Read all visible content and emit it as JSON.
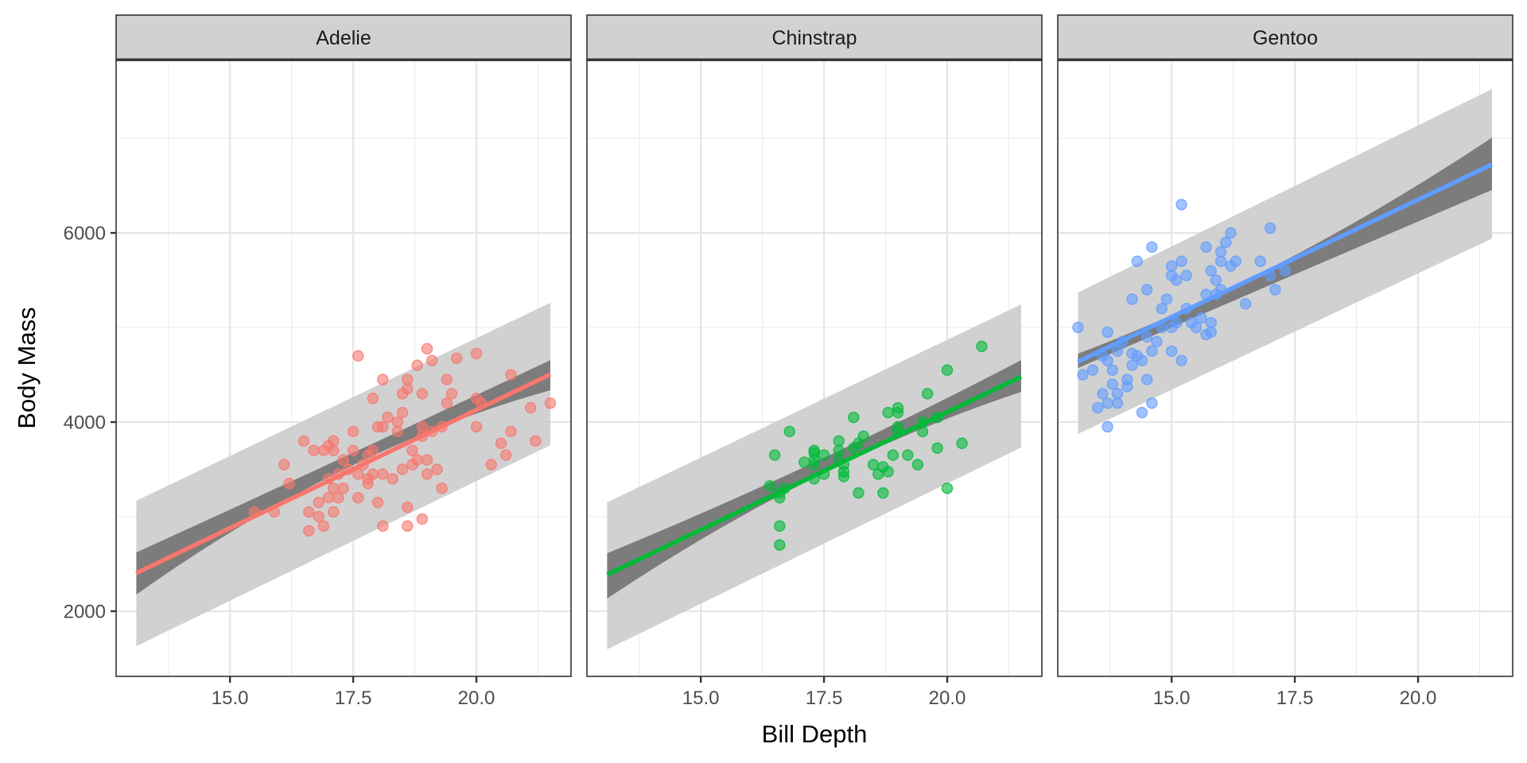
{
  "chart_data": {
    "type": "scatter",
    "subtype": "faceted scatter with linear fit, confidence band and prediction band",
    "xlabel": "Bill Depth",
    "ylabel": "Body Mass",
    "xlim": [
      12.69,
      21.92
    ],
    "ylim": [
      1311,
      7824
    ],
    "x_ticks": [
      15.0,
      17.5,
      20.0
    ],
    "x_tick_labels": [
      "15.0",
      "17.5",
      "20.0"
    ],
    "x_minor_gridlines": [
      13.75,
      16.25,
      18.75,
      21.25
    ],
    "y_ticks": [
      2000,
      4000,
      6000
    ],
    "y_tick_labels": [
      "2000",
      "4000",
      "6000"
    ],
    "y_minor_gridlines": [
      3000,
      5000,
      7000
    ],
    "grid": true,
    "legend": "none",
    "band_colors": {
      "prediction": "#cccccc",
      "confidence": "#777777"
    },
    "strip_fill": "#d1d1d1",
    "panels": [
      {
        "name": "Adelie",
        "color": "#F8766D",
        "fit": {
          "x": [
            13.1,
            21.5
          ],
          "y": [
            2403,
            4504
          ]
        },
        "confidence": {
          "x": [
            13.1,
            17.6,
            21.5
          ],
          "upper": [
            2622,
            3700,
            4655
          ],
          "lower": [
            2176,
            3570,
            4336
          ]
        },
        "prediction": {
          "x": [
            13.1,
            21.5
          ],
          "upper": [
            3168,
            5261
          ],
          "lower": [
            1630,
            3756
          ]
        },
        "points": [
          [
            15.5,
            3050
          ],
          [
            15.9,
            3050
          ],
          [
            16.1,
            3550
          ],
          [
            16.2,
            3350
          ],
          [
            16.5,
            3800
          ],
          [
            16.6,
            2850
          ],
          [
            16.6,
            3050
          ],
          [
            16.7,
            3700
          ],
          [
            16.8,
            3000
          ],
          [
            16.8,
            3150
          ],
          [
            16.9,
            3700
          ],
          [
            16.9,
            2900
          ],
          [
            17.0,
            3400
          ],
          [
            17.0,
            3750
          ],
          [
            17.0,
            3200
          ],
          [
            17.1,
            3700
          ],
          [
            17.1,
            3300
          ],
          [
            17.1,
            3050
          ],
          [
            17.1,
            3800
          ],
          [
            17.2,
            3200
          ],
          [
            17.2,
            3450
          ],
          [
            17.3,
            3600
          ],
          [
            17.3,
            3300
          ],
          [
            17.4,
            3500
          ],
          [
            17.5,
            3700
          ],
          [
            17.5,
            3900
          ],
          [
            17.6,
            4700
          ],
          [
            17.6,
            3450
          ],
          [
            17.6,
            3200
          ],
          [
            17.7,
            3550
          ],
          [
            17.8,
            3650
          ],
          [
            17.8,
            3350
          ],
          [
            17.8,
            3400
          ],
          [
            17.9,
            4250
          ],
          [
            17.9,
            3450
          ],
          [
            17.9,
            3700
          ],
          [
            18.0,
            3150
          ],
          [
            18.0,
            3950
          ],
          [
            18.1,
            4450
          ],
          [
            18.1,
            2900
          ],
          [
            18.1,
            3950
          ],
          [
            18.1,
            3450
          ],
          [
            18.2,
            4050
          ],
          [
            18.3,
            3400
          ],
          [
            18.4,
            4000
          ],
          [
            18.4,
            3900
          ],
          [
            18.5,
            4300
          ],
          [
            18.5,
            4100
          ],
          [
            18.5,
            3500
          ],
          [
            18.6,
            4450
          ],
          [
            18.6,
            4350
          ],
          [
            18.6,
            3100
          ],
          [
            18.6,
            2900
          ],
          [
            18.7,
            3550
          ],
          [
            18.7,
            3700
          ],
          [
            18.8,
            3600
          ],
          [
            18.8,
            4600
          ],
          [
            18.9,
            4300
          ],
          [
            18.9,
            3950
          ],
          [
            18.9,
            3850
          ],
          [
            18.9,
            2975
          ],
          [
            19.0,
            4775
          ],
          [
            19.0,
            3600
          ],
          [
            19.0,
            3450
          ],
          [
            19.1,
            4650
          ],
          [
            19.1,
            3900
          ],
          [
            19.2,
            3500
          ],
          [
            19.3,
            3300
          ],
          [
            19.3,
            3950
          ],
          [
            19.4,
            4450
          ],
          [
            19.4,
            4200
          ],
          [
            19.5,
            4300
          ],
          [
            19.6,
            4675
          ],
          [
            20.0,
            4725
          ],
          [
            20.0,
            4250
          ],
          [
            20.0,
            3950
          ],
          [
            20.1,
            4200
          ],
          [
            20.3,
            3550
          ],
          [
            20.5,
            3775
          ],
          [
            20.6,
            3650
          ],
          [
            20.7,
            4500
          ],
          [
            20.7,
            3900
          ],
          [
            21.1,
            4150
          ],
          [
            21.2,
            3800
          ],
          [
            21.5,
            4200
          ]
        ]
      },
      {
        "name": "Chinstrap",
        "color": "#00BA38",
        "fit": {
          "x": [
            13.1,
            21.5
          ],
          "y": [
            2387,
            4479
          ]
        },
        "confidence": {
          "x": [
            13.1,
            18.3,
            21.5
          ],
          "upper": [
            2613,
            3820,
            4655
          ],
          "lower": [
            2134,
            3660,
            4319
          ]
        },
        "prediction": {
          "x": [
            13.1,
            21.5
          ],
          "upper": [
            3151,
            5244
          ],
          "lower": [
            1597,
            3731
          ]
        },
        "points": [
          [
            16.4,
            3325
          ],
          [
            16.5,
            3650
          ],
          [
            16.6,
            3250
          ],
          [
            16.6,
            3200
          ],
          [
            16.6,
            2900
          ],
          [
            16.6,
            2700
          ],
          [
            16.7,
            3300
          ],
          [
            16.8,
            3900
          ],
          [
            17.1,
            3575
          ],
          [
            17.3,
            3700
          ],
          [
            17.3,
            3675
          ],
          [
            17.3,
            3600
          ],
          [
            17.3,
            3550
          ],
          [
            17.3,
            3400
          ],
          [
            17.5,
            3650
          ],
          [
            17.5,
            3450
          ],
          [
            17.8,
            3800
          ],
          [
            17.8,
            3700
          ],
          [
            17.8,
            3600
          ],
          [
            17.9,
            3425
          ],
          [
            17.9,
            3550
          ],
          [
            17.9,
            3475
          ],
          [
            18.1,
            4050
          ],
          [
            18.1,
            3725
          ],
          [
            18.2,
            3775
          ],
          [
            18.2,
            3250
          ],
          [
            18.3,
            3850
          ],
          [
            18.5,
            3550
          ],
          [
            18.6,
            3450
          ],
          [
            18.7,
            3525
          ],
          [
            18.7,
            3250
          ],
          [
            18.8,
            3475
          ],
          [
            18.8,
            4100
          ],
          [
            18.9,
            3650
          ],
          [
            19.0,
            4150
          ],
          [
            19.0,
            4100
          ],
          [
            19.0,
            3950
          ],
          [
            19.0,
            3900
          ],
          [
            19.2,
            3650
          ],
          [
            19.4,
            3550
          ],
          [
            19.5,
            4000
          ],
          [
            19.5,
            3900
          ],
          [
            19.6,
            4300
          ],
          [
            19.8,
            4050
          ],
          [
            19.8,
            3725
          ],
          [
            20.0,
            4550
          ],
          [
            20.0,
            3300
          ],
          [
            20.3,
            3775
          ],
          [
            20.7,
            4800
          ]
        ]
      },
      {
        "name": "Gentoo",
        "color": "#619CFF",
        "fit": {
          "x": [
            13.1,
            21.5
          ],
          "y": [
            4639,
            6723
          ]
        },
        "confidence": {
          "x": [
            13.1,
            15.0,
            21.5
          ],
          "upper": [
            4723,
            5130,
            7008
          ],
          "lower": [
            4571,
            5000,
            6454
          ]
        },
        "prediction": {
          "x": [
            13.1,
            21.5
          ],
          "upper": [
            5370,
            7521
          ],
          "lower": [
            3874,
            5941
          ]
        },
        "points": [
          [
            13.1,
            5000
          ],
          [
            13.2,
            4500
          ],
          [
            13.4,
            4550
          ],
          [
            13.5,
            4150
          ],
          [
            13.6,
            4700
          ],
          [
            13.6,
            4300
          ],
          [
            13.7,
            4650
          ],
          [
            13.7,
            4200
          ],
          [
            13.7,
            3950
          ],
          [
            13.7,
            4950
          ],
          [
            13.8,
            4550
          ],
          [
            13.8,
            4400
          ],
          [
            13.9,
            4300
          ],
          [
            13.9,
            4750
          ],
          [
            13.9,
            4200
          ],
          [
            14.0,
            4850
          ],
          [
            14.1,
            4450
          ],
          [
            14.1,
            4375
          ],
          [
            14.2,
            4600
          ],
          [
            14.2,
            4725
          ],
          [
            14.2,
            5300
          ],
          [
            14.3,
            4700
          ],
          [
            14.3,
            5700
          ],
          [
            14.4,
            4100
          ],
          [
            14.4,
            4650
          ],
          [
            14.5,
            4900
          ],
          [
            14.5,
            5400
          ],
          [
            14.5,
            4450
          ],
          [
            14.6,
            4200
          ],
          [
            14.6,
            4750
          ],
          [
            14.6,
            5850
          ],
          [
            14.7,
            4850
          ],
          [
            14.8,
            5000
          ],
          [
            14.8,
            5200
          ],
          [
            14.9,
            5300
          ],
          [
            15.0,
            5000
          ],
          [
            15.0,
            4750
          ],
          [
            15.0,
            5650
          ],
          [
            15.0,
            5550
          ],
          [
            15.1,
            5500
          ],
          [
            15.1,
            5050
          ],
          [
            15.2,
            6300
          ],
          [
            15.2,
            5700
          ],
          [
            15.2,
            4650
          ],
          [
            15.3,
            5550
          ],
          [
            15.3,
            5200
          ],
          [
            15.4,
            5050
          ],
          [
            15.5,
            5000
          ],
          [
            15.6,
            5100
          ],
          [
            15.7,
            5850
          ],
          [
            15.7,
            5350
          ],
          [
            15.7,
            4925
          ],
          [
            15.8,
            5600
          ],
          [
            15.8,
            5050
          ],
          [
            15.8,
            4950
          ],
          [
            15.9,
            5350
          ],
          [
            15.9,
            5500
          ],
          [
            16.0,
            5800
          ],
          [
            16.0,
            5700
          ],
          [
            16.0,
            5400
          ],
          [
            16.1,
            5900
          ],
          [
            16.2,
            6000
          ],
          [
            16.2,
            5650
          ],
          [
            16.3,
            5700
          ],
          [
            16.5,
            5250
          ],
          [
            16.8,
            5700
          ],
          [
            17.0,
            5550
          ],
          [
            17.0,
            6050
          ],
          [
            17.1,
            5400
          ],
          [
            17.3,
            5600
          ]
        ]
      }
    ]
  }
}
